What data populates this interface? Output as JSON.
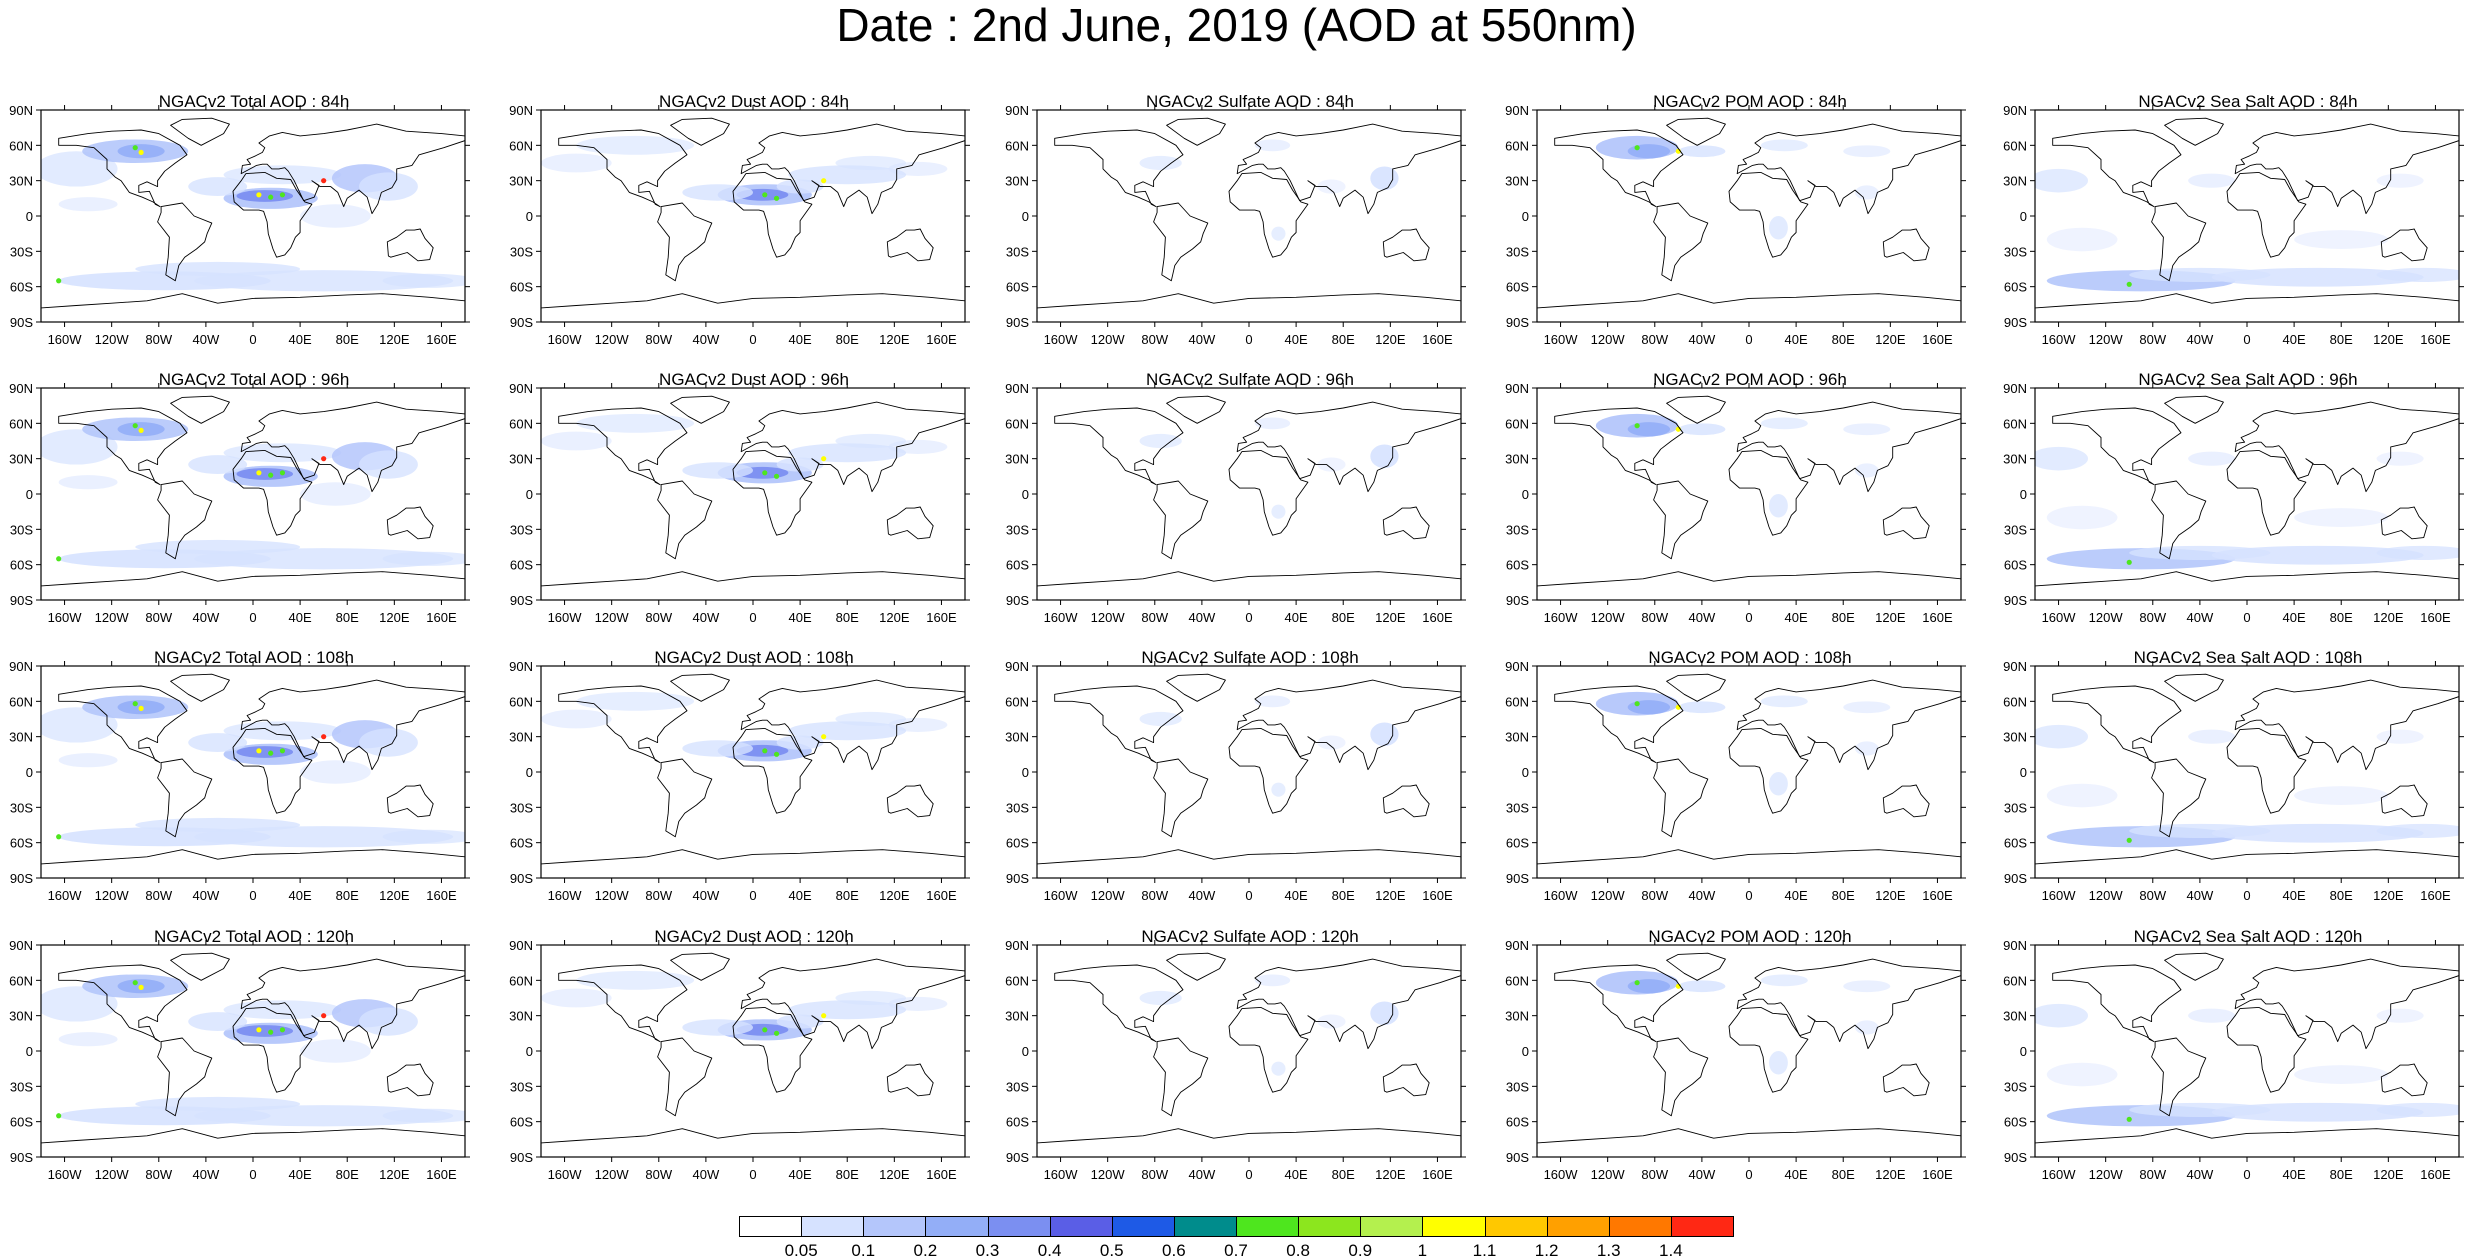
{
  "title": "Date : 2nd June, 2019 (AOD at 550nm)",
  "lat_ticks": [
    "90N",
    "60N",
    "30N",
    "0",
    "30S",
    "60S",
    "90S"
  ],
  "lon_ticks": [
    "160W",
    "120W",
    "80W",
    "40W",
    "0",
    "40E",
    "80E",
    "120E",
    "160E"
  ],
  "panels": [
    [
      "NGACv2 Total AOD : 84h",
      "NGACv2 Dust AOD : 84h",
      "NGACv2 Sulfate AOD : 84h",
      "NGACv2 POM AOD : 84h",
      "NGACv2 Sea Salt AOD : 84h"
    ],
    [
      "NGACv2 Total AOD : 96h",
      "NGACv2 Dust AOD : 96h",
      "NGACv2 Sulfate AOD : 96h",
      "NGACv2 POM AOD : 96h",
      "NGACv2 Sea Salt AOD : 96h"
    ],
    [
      "NGACv2 Total AOD : 108h",
      "NGACv2 Dust AOD : 108h",
      "NGACv2 Sulfate AOD : 108h",
      "NGACv2 POM AOD : 108h",
      "NGACv2 Sea Salt AOD : 108h"
    ],
    [
      "NGACv2 Total AOD : 120h",
      "NGACv2 Dust AOD : 120h",
      "NGACv2 Sulfate AOD : 120h",
      "NGACv2 POM AOD : 120h",
      "NGACv2 Sea Salt  AOD : 120h"
    ]
  ],
  "colorbar": {
    "labels": [
      "0.05",
      "0.1",
      "0.2",
      "0.3",
      "0.4",
      "0.5",
      "0.6",
      "0.7",
      "0.8",
      "0.9",
      "1",
      "1.1",
      "1.2",
      "1.3",
      "1.4"
    ],
    "colors": [
      "#ffffff",
      "#d6e2ff",
      "#b4c6fb",
      "#93aef7",
      "#7b8ff1",
      "#5a5ee6",
      "#1e5ae6",
      "#008c8c",
      "#4ee61e",
      "#8ce61e",
      "#b4f04e",
      "#ffff00",
      "#ffc800",
      "#ffa000",
      "#ff7800",
      "#ff2814"
    ]
  },
  "colors": {
    "coast": "#000000",
    "low": "#d6e2ff",
    "mid": "#b4c6fb",
    "high": "#93aef7",
    "higher": "#7b8ff1",
    "peak_green": "#4ee61e",
    "peak_yellow": "#ffff00",
    "peak_red": "#ff2814"
  }
}
